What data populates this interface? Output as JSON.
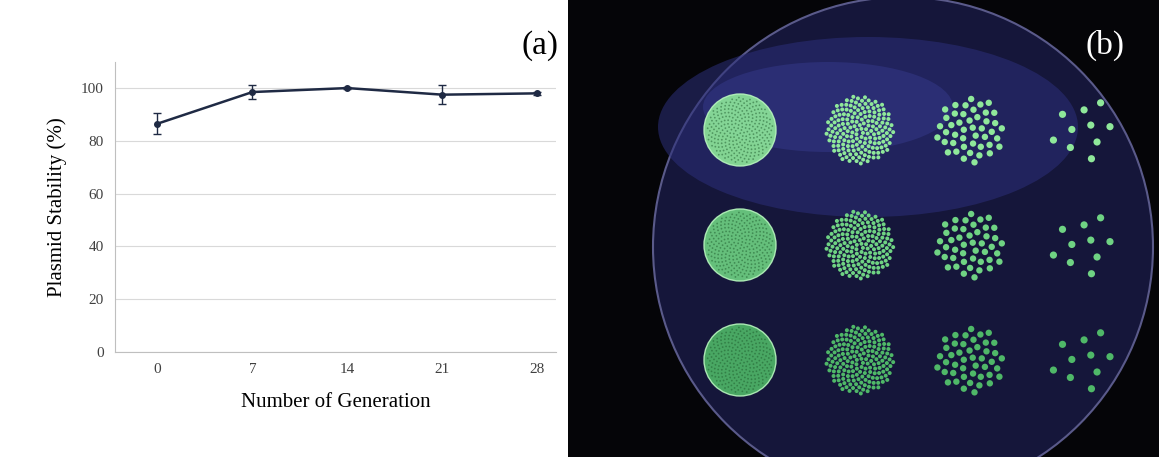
{
  "chart_data": {
    "type": "line",
    "x_label": "Number of Generation",
    "y_label": "Plasmid Stability (%)",
    "categories": [
      "0",
      "7",
      "14",
      "21",
      "28"
    ],
    "values": [
      86.5,
      98.5,
      100,
      97.5,
      98
    ],
    "errors": [
      4,
      2.5,
      0.5,
      3.5,
      0.5
    ],
    "color": "#1f2a44",
    "marker": "o",
    "line_style": "solid",
    "ylim": [
      0,
      110
    ],
    "yticks": [
      0,
      20,
      40,
      60,
      80,
      100
    ],
    "grid": true,
    "annotations": [
      "(a)"
    ]
  },
  "photo": {
    "label": "(b)"
  }
}
